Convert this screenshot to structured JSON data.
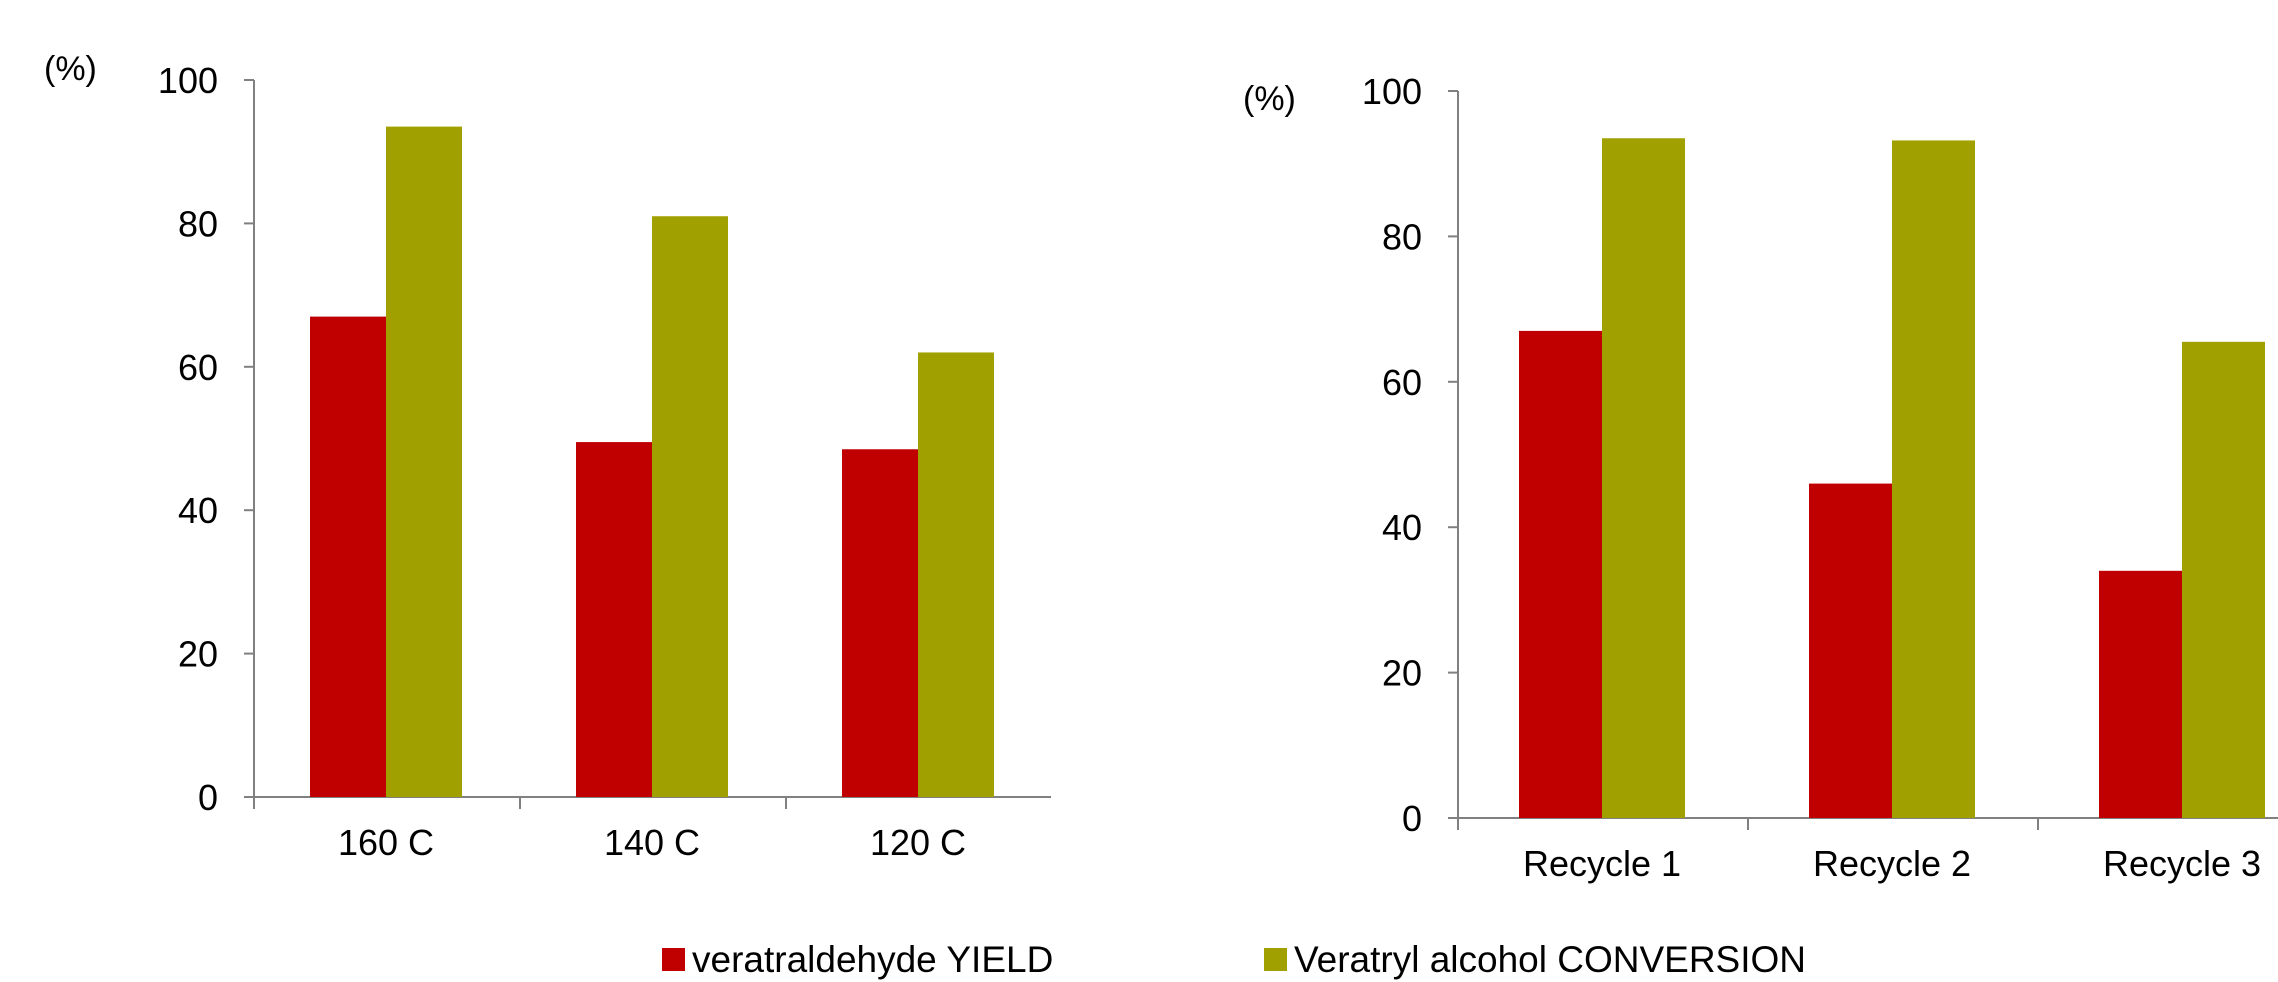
{
  "colors": {
    "yield": "#C00000",
    "conversion": "#A0A000",
    "axis": "#808080"
  },
  "legend": {
    "items": [
      {
        "label": "veratraldehyde YIELD",
        "color": "#C00000"
      },
      {
        "label": "Veratryl alcohol CONVERSION",
        "color": "#A0A000"
      }
    ],
    "placement": "bottom"
  },
  "chart_data": [
    {
      "type": "bar",
      "unit_label": "(%)",
      "ylim": [
        0,
        100
      ],
      "yticks": [
        "0",
        "20",
        "40",
        "60",
        "80",
        "100"
      ],
      "categories": [
        "160 C",
        "140 C",
        "120 C"
      ],
      "series": [
        {
          "name": "veratraldehyde YIELD",
          "values": [
            67,
            49.5,
            48.5
          ]
        },
        {
          "name": "Veratryl alcohol CONVERSION",
          "values": [
            93.5,
            81,
            62
          ]
        }
      ],
      "grid": false
    },
    {
      "type": "bar",
      "unit_label": "(%)",
      "ylim": [
        0,
        100
      ],
      "yticks": [
        "0",
        "20",
        "40",
        "60",
        "80",
        "100"
      ],
      "categories": [
        "Recycle 1",
        "Recycle 2",
        "Recycle 3"
      ],
      "series": [
        {
          "name": "veratraldehyde YIELD",
          "values": [
            67,
            46,
            34
          ]
        },
        {
          "name": "Veratryl alcohol CONVERSION",
          "values": [
            93.5,
            93.2,
            65.5
          ]
        }
      ],
      "grid": false
    }
  ]
}
